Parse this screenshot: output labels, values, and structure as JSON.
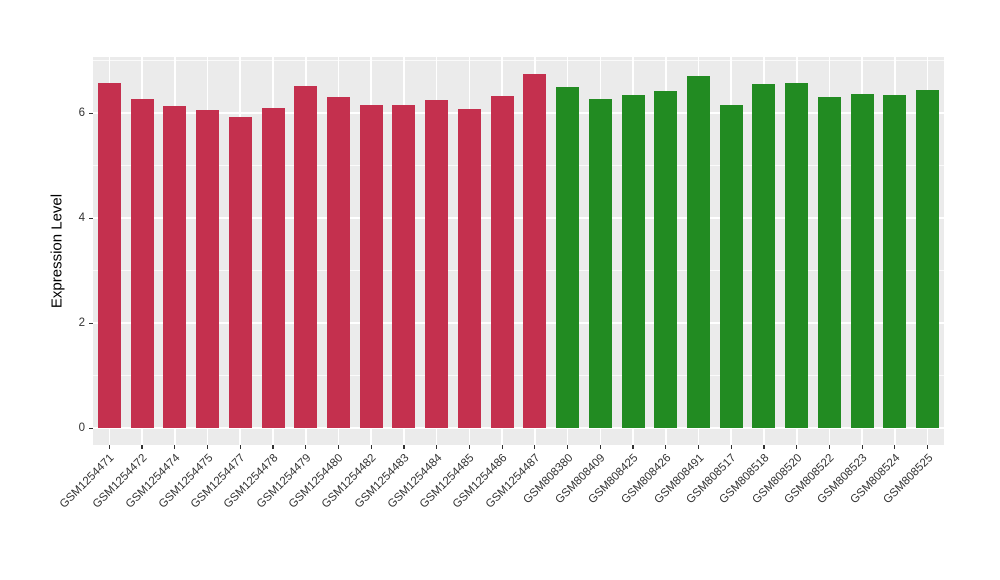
{
  "chart_data": {
    "type": "bar",
    "title": "",
    "xlabel": "",
    "ylabel": "Expression Level",
    "yticks": [
      0,
      2,
      4,
      6
    ],
    "ylim": [
      0,
      7.09
    ],
    "grid": "on",
    "legend": "none",
    "panel_bg": "#EBEBEB",
    "grid_color": "#FFFFFF",
    "axis_text_color": "#333333",
    "group_colors": {
      "crimson": "#C4304E",
      "green": "#228B22"
    },
    "categories": [
      "GSM1254471",
      "GSM1254472",
      "GSM1254474",
      "GSM1254475",
      "GSM1254477",
      "GSM1254478",
      "GSM1254479",
      "GSM1254480",
      "GSM1254482",
      "GSM1254483",
      "GSM1254484",
      "GSM1254485",
      "GSM1254486",
      "GSM1254487",
      "GSM808380",
      "GSM808409",
      "GSM808425",
      "GSM808426",
      "GSM808491",
      "GSM808517",
      "GSM808518",
      "GSM808520",
      "GSM808522",
      "GSM808523",
      "GSM808524",
      "GSM808525"
    ],
    "values": [
      6.58,
      6.27,
      6.14,
      6.05,
      5.92,
      6.1,
      6.52,
      6.31,
      6.16,
      6.15,
      6.24,
      6.08,
      6.33,
      6.75,
      6.49,
      6.27,
      6.34,
      6.42,
      6.71,
      6.16,
      6.55,
      6.58,
      6.3,
      6.36,
      6.35,
      6.44
    ],
    "colors": [
      "#C4304E",
      "#C4304E",
      "#C4304E",
      "#C4304E",
      "#C4304E",
      "#C4304E",
      "#C4304E",
      "#C4304E",
      "#C4304E",
      "#C4304E",
      "#C4304E",
      "#C4304E",
      "#C4304E",
      "#C4304E",
      "#228B22",
      "#228B22",
      "#228B22",
      "#228B22",
      "#228B22",
      "#228B22",
      "#228B22",
      "#228B22",
      "#228B22",
      "#228B22",
      "#228B22",
      "#228B22"
    ]
  }
}
